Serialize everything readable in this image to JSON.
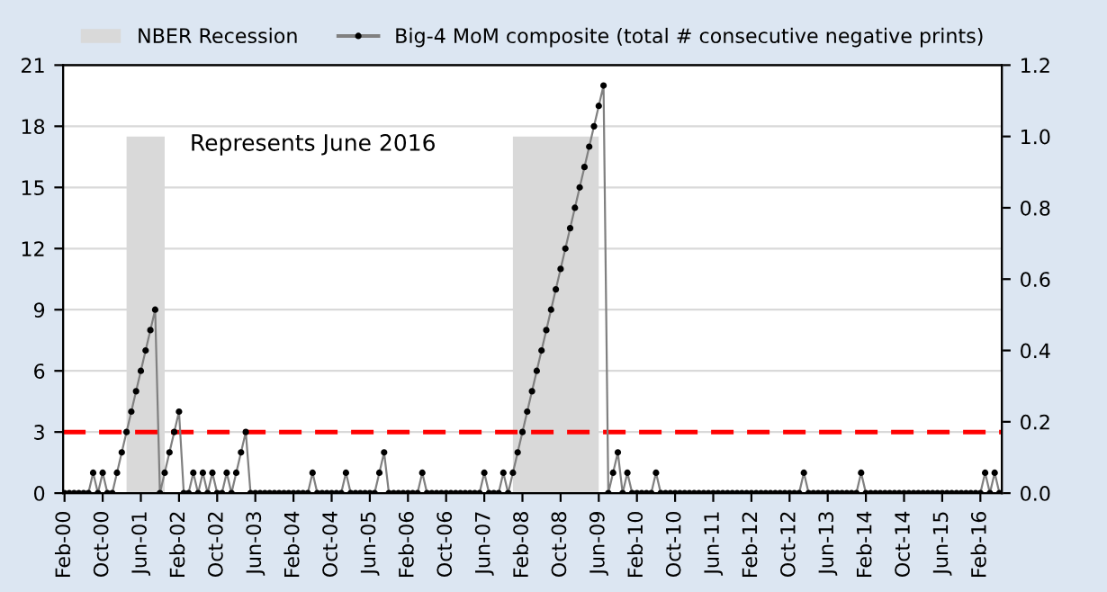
{
  "chart_data": {
    "type": "line",
    "categories": [
      "Feb-00",
      null,
      null,
      null,
      null,
      null,
      null,
      null,
      "Oct-00",
      null,
      null,
      null,
      null,
      null,
      null,
      null,
      "Jun-01",
      null,
      null,
      null,
      null,
      null,
      null,
      null,
      "Feb-02",
      null,
      null,
      null,
      null,
      null,
      null,
      null,
      "Oct-02",
      null,
      null,
      null,
      null,
      null,
      null,
      null,
      "Jun-03",
      null,
      null,
      null,
      null,
      null,
      null,
      null,
      "Feb-04",
      null,
      null,
      null,
      null,
      null,
      null,
      null,
      "Oct-04",
      null,
      null,
      null,
      null,
      null,
      null,
      null,
      "Jun-05",
      null,
      null,
      null,
      null,
      null,
      null,
      null,
      "Feb-06",
      null,
      null,
      null,
      null,
      null,
      null,
      null,
      "Oct-06",
      null,
      null,
      null,
      null,
      null,
      null,
      null,
      "Jun-07",
      null,
      null,
      null,
      null,
      null,
      null,
      null,
      "Feb-08",
      null,
      null,
      null,
      null,
      null,
      null,
      null,
      "Oct-08",
      null,
      null,
      null,
      null,
      null,
      null,
      null,
      "Jun-09",
      null,
      null,
      null,
      null,
      null,
      null,
      null,
      "Feb-10",
      null,
      null,
      null,
      null,
      null,
      null,
      null,
      "Oct-10",
      null,
      null,
      null,
      null,
      null,
      null,
      null,
      "Jun-11",
      null,
      null,
      null,
      null,
      null,
      null,
      null,
      "Feb-12",
      null,
      null,
      null,
      null,
      null,
      null,
      null,
      "Oct-12",
      null,
      null,
      null,
      null,
      null,
      null,
      null,
      "Jun-13",
      null,
      null,
      null,
      null,
      null,
      null,
      null,
      "Feb-14",
      null,
      null,
      null,
      null,
      null,
      null,
      null,
      "Oct-14",
      null,
      null,
      null,
      null,
      null,
      null,
      null,
      "Jun-15",
      null,
      null,
      null,
      null,
      null,
      null,
      null,
      "Feb-16",
      null,
      null,
      null,
      null
    ],
    "series": [
      {
        "name": "NBER Recession",
        "type": "area",
        "axis": "y2",
        "color": "#d9d9d9",
        "values": [
          null,
          null,
          null,
          null,
          null,
          null,
          null,
          null,
          null,
          null,
          null,
          null,
          null,
          1,
          1,
          1,
          1,
          1,
          1,
          1,
          1,
          1,
          null,
          null,
          null,
          null,
          null,
          null,
          null,
          null,
          null,
          null,
          null,
          null,
          null,
          null,
          null,
          null,
          null,
          null,
          null,
          null,
          null,
          null,
          null,
          null,
          null,
          null,
          null,
          null,
          null,
          null,
          null,
          null,
          null,
          null,
          null,
          null,
          null,
          null,
          null,
          null,
          null,
          null,
          null,
          null,
          null,
          null,
          null,
          null,
          null,
          null,
          null,
          null,
          null,
          null,
          null,
          null,
          null,
          null,
          null,
          null,
          null,
          null,
          null,
          null,
          null,
          null,
          null,
          null,
          null,
          null,
          null,
          null,
          1,
          1,
          1,
          1,
          1,
          1,
          1,
          1,
          1,
          1,
          1,
          1,
          1,
          1,
          1,
          1,
          1,
          1,
          1,
          null,
          null,
          null,
          null,
          null,
          null,
          null,
          null,
          null,
          null,
          null,
          null,
          null,
          null,
          null,
          null,
          null,
          null,
          null,
          null,
          null,
          null,
          null,
          null,
          null,
          null,
          null,
          null,
          null,
          null,
          null,
          null,
          null,
          null,
          null,
          null,
          null,
          null,
          null,
          null,
          null,
          null,
          null,
          null,
          null,
          null,
          null,
          null,
          null,
          null,
          null,
          null,
          null,
          null,
          null,
          null,
          null,
          null,
          null,
          null,
          null,
          null,
          null,
          null,
          null,
          null,
          null,
          null,
          null,
          null,
          null,
          null,
          null,
          null,
          null,
          null,
          null,
          null,
          null,
          null,
          null,
          null,
          null,
          null
        ]
      },
      {
        "name": "Big-4 MoM composite (total # consecutive negative prints)",
        "color": "#808080",
        "marker": "circle",
        "values": [
          0,
          0,
          0,
          0,
          0,
          0,
          1,
          0,
          1,
          0,
          0,
          1,
          2,
          3,
          4,
          5,
          6,
          7,
          8,
          9,
          0,
          1,
          2,
          3,
          4,
          0,
          0,
          1,
          0,
          1,
          0,
          1,
          0,
          0,
          1,
          0,
          1,
          2,
          3,
          0,
          0,
          0,
          0,
          0,
          0,
          0,
          0,
          0,
          0,
          0,
          0,
          0,
          1,
          0,
          0,
          0,
          0,
          0,
          0,
          1,
          0,
          0,
          0,
          0,
          0,
          0,
          1,
          2,
          0,
          0,
          0,
          0,
          0,
          0,
          0,
          1,
          0,
          0,
          0,
          0,
          0,
          0,
          0,
          0,
          0,
          0,
          0,
          0,
          1,
          0,
          0,
          0,
          1,
          0,
          1,
          2,
          3,
          4,
          5,
          6,
          7,
          8,
          9,
          10,
          11,
          12,
          13,
          14,
          15,
          16,
          17,
          18,
          19,
          20,
          0,
          1,
          2,
          0,
          1,
          0,
          0,
          0,
          0,
          0,
          1,
          0,
          0,
          0,
          0,
          0,
          0,
          0,
          0,
          0,
          0,
          0,
          0,
          0,
          0,
          0,
          0,
          0,
          0,
          0,
          0,
          0,
          0,
          0,
          0,
          0,
          0,
          0,
          0,
          0,
          0,
          1,
          0,
          0,
          0,
          0,
          0,
          0,
          0,
          0,
          0,
          0,
          0,
          1,
          0,
          0,
          0,
          0,
          0,
          0,
          0,
          0,
          0,
          0,
          0,
          0,
          0,
          0,
          0,
          0,
          0,
          0,
          0,
          0,
          0,
          0,
          0,
          0,
          0,
          1,
          0,
          1,
          0
        ]
      }
    ],
    "ylim": [
      0,
      21
    ],
    "yticks": [
      0,
      3,
      6,
      9,
      12,
      15,
      18,
      21
    ],
    "y2lim": [
      0,
      1.2
    ],
    "y2ticks": [
      {
        "value": 0,
        "label": "0.0"
      },
      0.2,
      0.4,
      0.6,
      0.8,
      {
        "value": 1,
        "label": "1.0"
      },
      1.2
    ],
    "ref_lines": [
      {
        "axis": "y",
        "value": 3,
        "color": "#ff0000",
        "line_style": "dashed"
      }
    ],
    "annotations": [
      "Represents June 2016"
    ],
    "grid": "y",
    "legend": "top"
  }
}
